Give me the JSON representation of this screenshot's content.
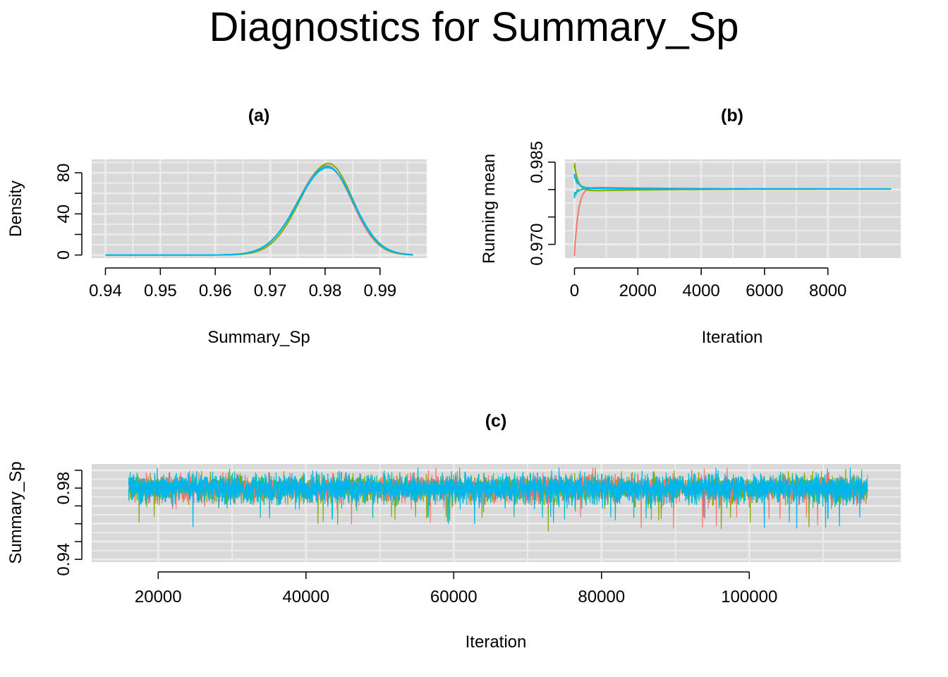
{
  "main_title": "Diagnostics for Summary_Sp",
  "colors": {
    "chain1": "#F8766D",
    "chain2": "#7CAE00",
    "chain3": "#00BFC4",
    "chain4": "#00B4F0",
    "panel_bg": "#D9D9D9",
    "grid": "#EBEBEB"
  },
  "chart_data": [
    {
      "id": "a",
      "type": "line",
      "title": "(a)",
      "xlabel": "Summary_Sp",
      "ylabel": "Density",
      "xlim": [
        0.9375,
        0.9985
      ],
      "ylim": [
        -3,
        93
      ],
      "xticks": [
        0.94,
        0.95,
        0.96,
        0.97,
        0.98,
        0.99
      ],
      "xtick_labels": [
        "0.94",
        "0.95",
        "0.96",
        "0.97",
        "0.98",
        "0.99"
      ],
      "yticks": [
        0,
        40,
        80
      ],
      "ytick_labels": [
        "0",
        "40",
        "80"
      ],
      "yminor": [
        20,
        60
      ],
      "grid": true,
      "series": [
        {
          "color_key": "chain1",
          "mean": 0.9803,
          "sd": 0.00455,
          "peak": 87
        },
        {
          "color_key": "chain2",
          "mean": 0.9806,
          "sd": 0.00445,
          "peak": 89
        },
        {
          "color_key": "chain3",
          "mean": 0.9804,
          "sd": 0.00465,
          "peak": 86
        },
        {
          "color_key": "chain4",
          "mean": 0.9805,
          "sd": 0.0047,
          "peak": 85
        }
      ],
      "x_range": [
        0.94,
        0.996
      ]
    },
    {
      "id": "b",
      "type": "line",
      "title": "(b)",
      "xlabel": "Iteration",
      "ylabel": "Running mean",
      "xlim": [
        -300,
        10300
      ],
      "ylim": [
        0.9675,
        0.9855
      ],
      "xticks": [
        0,
        2000,
        4000,
        6000,
        8000
      ],
      "xtick_labels": [
        "0",
        "2000",
        "4000",
        "6000",
        "8000"
      ],
      "yticks": [
        0.97,
        0.985
      ],
      "ytick_labels": [
        "0.970",
        "0.985"
      ],
      "yminor": [
        0.975,
        0.98
      ],
      "grid": true,
      "converged_value": 0.9801,
      "series": [
        {
          "color_key": "chain1",
          "start": 0.968,
          "settle": 0.9805
        },
        {
          "color_key": "chain2",
          "start": 0.9845,
          "settle": 0.9797
        },
        {
          "color_key": "chain3",
          "start": 0.979,
          "settle": 0.9802
        },
        {
          "color_key": "chain4",
          "start": 0.9825,
          "settle": 0.9803
        }
      ],
      "x_range": [
        0,
        10000
      ]
    },
    {
      "id": "c",
      "type": "line",
      "title": "(c)",
      "xlabel": "Iteration",
      "ylabel": "Summary_Sp",
      "xlim": [
        11000,
        120500
      ],
      "ylim": [
        0.9385,
        0.9935
      ],
      "xticks": [
        20000,
        40000,
        60000,
        80000,
        100000
      ],
      "xtick_labels": [
        "20000",
        "40000",
        "60000",
        "80000",
        "100000"
      ],
      "yticks": [
        0.94,
        0.98
      ],
      "ytick_labels": [
        "0.94",
        "0.98"
      ],
      "yminor": [
        0.95,
        0.96,
        0.97,
        0.99
      ],
      "grid": true,
      "x_range": [
        16000,
        116000
      ],
      "trace_center": 0.9803,
      "trace_sd": 0.0042,
      "series": [
        {
          "color_key": "chain1"
        },
        {
          "color_key": "chain2"
        },
        {
          "color_key": "chain3"
        },
        {
          "color_key": "chain4"
        }
      ]
    }
  ]
}
